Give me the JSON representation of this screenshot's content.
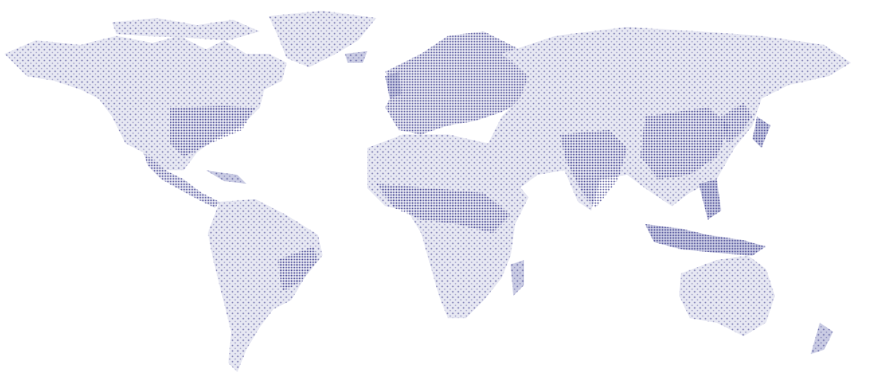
{
  "map": {
    "style": "population dot-density world map",
    "projection": "equirectangular",
    "dot_color": "#1f1f7a",
    "background_color": "#ffffff",
    "legend": null,
    "title": null
  }
}
